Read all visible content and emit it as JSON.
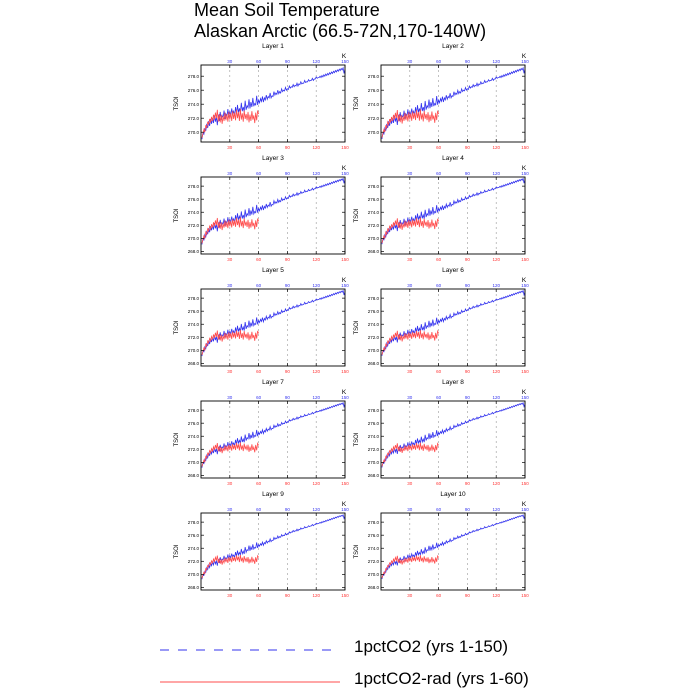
{
  "title": {
    "line1": "Mean Soil Temperature",
    "line2": "Alaskan Arctic (66.5-72N,170-140W)"
  },
  "legend": [
    {
      "label": "1pctCO2 (yrs 1-150)",
      "color": "#3333ee",
      "style": "dashed"
    },
    {
      "label": "1pctCO2-rad (yrs 1-60)",
      "color": "#ff4d4d",
      "style": "solid"
    }
  ],
  "chart_data": {
    "type": "line",
    "ylabel": "TSOI",
    "top_axis_corner_label": "K",
    "top_axis_color": "#3333ee",
    "bottom_axis_color": "#ff3333",
    "x_ticks": [
      30,
      60,
      90,
      120,
      150
    ],
    "xlim": [
      0,
      150
    ],
    "grid_x_dashed": [
      30,
      60,
      90,
      120
    ],
    "panels": [
      {
        "title": "Layer 1",
        "ylim": [
          268.6,
          279.6
        ],
        "y_ticks": [
          270.0,
          272.0,
          274.0,
          276.0,
          278.0
        ]
      },
      {
        "title": "Layer 2",
        "ylim": [
          268.6,
          279.6
        ],
        "y_ticks": [
          270.0,
          272.0,
          274.0,
          276.0,
          278.0
        ]
      },
      {
        "title": "Layer 3",
        "ylim": [
          267.6,
          279.4
        ],
        "y_ticks": [
          268.0,
          270.0,
          272.0,
          274.0,
          276.0,
          278.0
        ]
      },
      {
        "title": "Layer 4",
        "ylim": [
          267.6,
          279.4
        ],
        "y_ticks": [
          268.0,
          270.0,
          272.0,
          274.0,
          276.0,
          278.0
        ]
      },
      {
        "title": "Layer 5",
        "ylim": [
          267.6,
          279.4
        ],
        "y_ticks": [
          268.0,
          270.0,
          272.0,
          274.0,
          276.0,
          278.0
        ]
      },
      {
        "title": "Layer 6",
        "ylim": [
          267.6,
          279.4
        ],
        "y_ticks": [
          268.0,
          270.0,
          272.0,
          274.0,
          276.0,
          278.0
        ]
      },
      {
        "title": "Layer 7",
        "ylim": [
          267.6,
          279.4
        ],
        "y_ticks": [
          268.0,
          270.0,
          272.0,
          274.0,
          276.0,
          278.0
        ]
      },
      {
        "title": "Layer 8",
        "ylim": [
          267.6,
          279.4
        ],
        "y_ticks": [
          268.0,
          270.0,
          272.0,
          274.0,
          276.0,
          278.0
        ]
      },
      {
        "title": "Layer 9",
        "ylim": [
          267.6,
          279.4
        ],
        "y_ticks": [
          268.0,
          270.0,
          272.0,
          274.0,
          276.0,
          278.0
        ]
      },
      {
        "title": "Layer 10",
        "ylim": [
          267.6,
          279.4
        ],
        "y_ticks": [
          268.0,
          270.0,
          272.0,
          274.0,
          276.0,
          278.0
        ]
      }
    ],
    "series": [
      {
        "name": "1pctCO2 (yrs 1-150)",
        "color": "#3333ee",
        "x_start": 1,
        "x_step": 1,
        "values": [
          269.0,
          269.9,
          269.7,
          270.6,
          270.2,
          271.2,
          270.6,
          271.6,
          270.9,
          271.9,
          271.2,
          272.0,
          271.3,
          272.4,
          271.5,
          272.2,
          271.0,
          272.5,
          271.6,
          272.9,
          271.8,
          272.4,
          272.0,
          273.1,
          271.9,
          272.6,
          272.2,
          273.3,
          272.1,
          273.0,
          272.3,
          273.4,
          272.6,
          273.0,
          272.4,
          273.6,
          272.6,
          273.9,
          272.8,
          273.4,
          272.8,
          274.2,
          273.0,
          273.6,
          272.9,
          274.5,
          273.2,
          273.8,
          273.5,
          274.7,
          273.4,
          274.3,
          273.6,
          274.9,
          273.7,
          274.1,
          273.9,
          275.2,
          273.9,
          274.6,
          274.2,
          274.8,
          274.4,
          275.1,
          274.3,
          274.9,
          274.6,
          275.3,
          274.7,
          275.1,
          274.9,
          275.6,
          274.9,
          275.2,
          275.1,
          275.8,
          275.3,
          275.6,
          275.4,
          276.0,
          275.5,
          275.8,
          275.6,
          276.2,
          275.8,
          276.0,
          275.9,
          276.4,
          276.0,
          276.2,
          276.1,
          276.6,
          276.3,
          276.5,
          276.4,
          276.8,
          276.5,
          276.7,
          276.6,
          277.0,
          276.6,
          276.9,
          276.8,
          277.2,
          276.9,
          277.0,
          277.0,
          277.4,
          277.1,
          277.2,
          277.2,
          277.5,
          277.3,
          277.4,
          277.4,
          277.7,
          277.4,
          277.6,
          277.6,
          277.9,
          277.7,
          277.8,
          277.8,
          278.0,
          277.8,
          278.1,
          277.9,
          278.2,
          278.0,
          278.3,
          278.1,
          278.4,
          278.2,
          278.5,
          278.3,
          278.6,
          278.4,
          278.7,
          278.5,
          278.8,
          278.6,
          278.9,
          278.7,
          279.0,
          278.8,
          279.1,
          278.9,
          279.2,
          278.4,
          279.0
        ]
      },
      {
        "name": "1pctCO2-rad (yrs 1-60)",
        "color": "#ff4d4d",
        "x_start": 1,
        "x_step": 1,
        "values": [
          269.2,
          269.8,
          270.4,
          270.0,
          271.0,
          270.6,
          271.5,
          271.1,
          271.9,
          271.4,
          272.2,
          271.6,
          272.5,
          271.8,
          272.8,
          272.0,
          273.2,
          271.5,
          272.6,
          271.4,
          272.5,
          271.2,
          272.3,
          271.6,
          272.8,
          271.7,
          272.6,
          271.5,
          272.9,
          271.8,
          272.7,
          271.6,
          273.0,
          271.9,
          272.8,
          271.7,
          273.2,
          272.0,
          272.9,
          271.6,
          273.3,
          271.8,
          272.7,
          271.5,
          273.1,
          271.9,
          272.6,
          271.7,
          272.9,
          271.4,
          272.5,
          271.6,
          273.0,
          271.8,
          272.4,
          271.3,
          272.8,
          271.7,
          273.1,
          272.6
        ]
      }
    ]
  }
}
